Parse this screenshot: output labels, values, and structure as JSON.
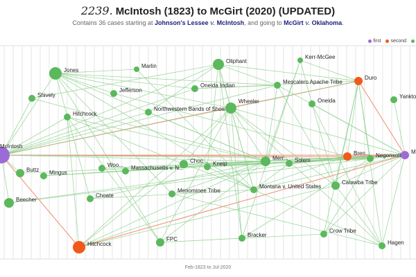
{
  "header": {
    "number": "2239.",
    "title": "McIntosh (1823) to McGirt (2020) (UPDATED)",
    "subtitle_prefix": "Contains 36 cases starting at ",
    "start_case_a": "Johnson's Lessee",
    "start_case_v": "v.",
    "start_case_b": "McIntosh",
    "subtitle_middle": ", and going to ",
    "end_case_a": "McGirt",
    "end_case_v": "v.",
    "end_case_b": "Oklahoma",
    "subtitle_end": "."
  },
  "legend": [
    {
      "label": "first",
      "color": "#9c6bd6"
    },
    {
      "label": "second",
      "color": "#f05a1a"
    },
    {
      "label": "",
      "color": "#5cb85c"
    }
  ],
  "timeline_label": "Feb-1823 to Jul-2020",
  "colors": {
    "first": "#9c6bd6",
    "second": "#f05a1a",
    "other": "#5cb85c",
    "edge": "#8fd08f",
    "edge_highlight": "#f08a6a",
    "grid": "#e6e6e6"
  },
  "nodes": [
    {
      "id": "mcintosh",
      "label": "McIntosh",
      "kind": "first"
    },
    {
      "id": "mcgirt",
      "label": "Mc",
      "kind": "first"
    },
    {
      "id": "jones",
      "label": "Jones",
      "kind": "other"
    },
    {
      "id": "marlin",
      "label": "Marlin",
      "kind": "other"
    },
    {
      "id": "oliphant",
      "label": "Oliphant",
      "kind": "other"
    },
    {
      "id": "kerrmcgee",
      "label": "Kerr-McGee",
      "kind": "other"
    },
    {
      "id": "duro",
      "label": "Duro",
      "kind": "second"
    },
    {
      "id": "yankton",
      "label": "Yankton",
      "kind": "other"
    },
    {
      "id": "shively",
      "label": "Shively",
      "kind": "other"
    },
    {
      "id": "jefferson",
      "label": "Jefferson",
      "kind": "other"
    },
    {
      "id": "oneidaindian",
      "label": "Oneida Indian",
      "kind": "other"
    },
    {
      "id": "mescalero",
      "label": "Mescalero Apache Tribe",
      "kind": "other"
    },
    {
      "id": "hitchcock1",
      "label": "Hitchcock",
      "kind": "other"
    },
    {
      "id": "northwestern",
      "label": "Northwestern Bands of Shos...",
      "kind": "other"
    },
    {
      "id": "wheeler",
      "label": "Wheeler",
      "kind": "other"
    },
    {
      "id": "oneida",
      "label": "Oneida",
      "kind": "other"
    },
    {
      "id": "buttz",
      "label": "Buttz",
      "kind": "other"
    },
    {
      "id": "mingus",
      "label": "Mingus",
      "kind": "other"
    },
    {
      "id": "woo",
      "label": "Woo...",
      "kind": "other"
    },
    {
      "id": "massachusetts",
      "label": "Massachusetts v. N...",
      "kind": "other"
    },
    {
      "id": "choc",
      "label": "Choc...",
      "kind": "other"
    },
    {
      "id": "kneip",
      "label": "Kneip",
      "kind": "other"
    },
    {
      "id": "merr",
      "label": "Merr...",
      "kind": "other"
    },
    {
      "id": "solem",
      "label": "Solem",
      "kind": "other"
    },
    {
      "id": "bren",
      "label": "Bren...",
      "kind": "second"
    },
    {
      "id": "negonsott",
      "label": "Negonsott",
      "kind": "other"
    },
    {
      "id": "beecher",
      "label": "Beecher",
      "kind": "other"
    },
    {
      "id": "choate",
      "label": "Choate",
      "kind": "other"
    },
    {
      "id": "menominee",
      "label": "Menominee Tribe",
      "kind": "other"
    },
    {
      "id": "montana",
      "label": "Montana v. United States",
      "kind": "other"
    },
    {
      "id": "catawba",
      "label": "Catawba Tribe",
      "kind": "other"
    },
    {
      "id": "hitchcock2",
      "label": "Hitchcock",
      "kind": "second"
    },
    {
      "id": "fpc",
      "label": "FPC",
      "kind": "other"
    },
    {
      "id": "bracker",
      "label": "Bracker",
      "kind": "other"
    },
    {
      "id": "crowtribe",
      "label": "Crow Tribe",
      "kind": "other"
    },
    {
      "id": "hagen",
      "label": "Hagen",
      "kind": "other"
    }
  ]
}
